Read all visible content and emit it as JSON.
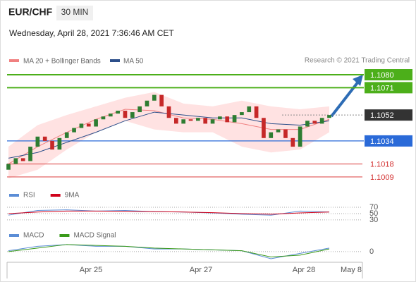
{
  "chart_data": {
    "type": "candlestick",
    "symbol": "EUR/CHF",
    "timeframe": "30 MIN",
    "datetime": "Wednesday, April 28, 2021 7:36:46 AM CET",
    "credit": "Research © 2021 Trading Central",
    "x_labels": [
      "Apr 25",
      "Apr 27",
      "Apr 28",
      "May 8"
    ],
    "ylim": [
      1.1007,
      1.1085
    ],
    "up_color": "#2e7d32",
    "down_color": "#c62828",
    "open": [
      1.1014,
      1.1018,
      1.1022,
      1.102,
      1.103,
      1.1037,
      1.1034,
      1.1028,
      1.1036,
      1.104,
      1.1043,
      1.1046,
      1.1044,
      1.1049,
      1.1051,
      1.1053,
      1.1055,
      1.105,
      1.1054,
      1.1058,
      1.1062,
      1.1066,
      1.1058,
      1.105,
      1.1046,
      1.1049,
      1.1048,
      1.105,
      1.1046,
      1.1049,
      1.1051,
      1.1047,
      1.1052,
      1.1054,
      1.1058,
      1.105,
      1.1036,
      1.104,
      1.1042,
      1.1036,
      1.103,
      1.1044,
      1.1048,
      1.1046,
      1.105
    ],
    "close": [
      1.1018,
      1.1022,
      1.102,
      1.103,
      1.1037,
      1.1034,
      1.1028,
      1.1036,
      1.104,
      1.1043,
      1.1046,
      1.1044,
      1.1049,
      1.1051,
      1.1053,
      1.1055,
      1.105,
      1.1054,
      1.1058,
      1.1062,
      1.1066,
      1.1058,
      1.105,
      1.1046,
      1.1049,
      1.1048,
      1.105,
      1.1046,
      1.1049,
      1.1051,
      1.1047,
      1.1052,
      1.1054,
      1.1058,
      1.105,
      1.1036,
      1.104,
      1.1042,
      1.1036,
      1.103,
      1.1044,
      1.1048,
      1.1046,
      1.105,
      1.1052
    ],
    "bollinger": {
      "name": "MA 20 + Bollinger Bands",
      "color": "#f08080",
      "fill": "#ffd6d6",
      "upper": [
        1.103,
        1.1045,
        1.1052,
        1.1058,
        1.1064,
        1.1068,
        1.106,
        1.1058,
        1.1062,
        1.1058,
        1.1056,
        1.1058
      ],
      "values": [
        1.1018,
        1.103,
        1.104,
        1.1049,
        1.1056,
        1.1055,
        1.105,
        1.1049,
        1.1046,
        1.1042,
        1.1042,
        1.1049
      ],
      "lower": [
        1.1008,
        1.1014,
        1.1028,
        1.104,
        1.1048,
        1.1042,
        1.104,
        1.104,
        1.103,
        1.1026,
        1.1028,
        1.104
      ]
    },
    "ma50": {
      "name": "MA 50",
      "color": "#2c4f8a",
      "values": [
        1.1022,
        1.1026,
        1.1033,
        1.104,
        1.1048,
        1.1054,
        1.1052,
        1.105,
        1.105,
        1.1046,
        1.1045,
        1.1048
      ]
    },
    "levels": [
      {
        "value": 1.108,
        "label": "1.1080",
        "color": "#4caf1a",
        "boxed": true
      },
      {
        "value": 1.1071,
        "label": "1.1071",
        "color": "#4caf1a",
        "boxed": true
      },
      {
        "value": 1.1052,
        "label": "1.1052",
        "color": "#333333",
        "boxed": true,
        "dotted": true
      },
      {
        "value": 1.1034,
        "label": "1.1034",
        "color": "#2a6ad8",
        "boxed": true
      },
      {
        "value": 1.1018,
        "label": "1.1018",
        "color": "#e57373",
        "boxed": false
      },
      {
        "value": 1.1009,
        "label": "1.1009",
        "color": "#e57373",
        "boxed": false
      }
    ],
    "indicators": [
      {
        "ylim": [
          12,
          90
        ],
        "yticks": [
          70,
          50,
          30
        ],
        "series": [
          {
            "name": "RSI",
            "color": "#5b8dd6",
            "values": [
              45,
              60,
              62,
              58,
              60,
              56,
              55,
              52,
              48,
              45,
              58,
              55
            ]
          },
          {
            "name": "9MA",
            "color": "#d0021b",
            "values": [
              50,
              55,
              58,
              58,
              57,
              56,
              55,
              53,
              50,
              48,
              52,
              55
            ]
          }
        ]
      },
      {
        "ylim": [
          -0.0012,
          0.0015
        ],
        "yticks": [
          0
        ],
        "series": [
          {
            "name": "MACD",
            "color": "#5b8dd6",
            "values": [
              0.0001,
              0.0006,
              0.0008,
              0.0006,
              0.0006,
              0.0003,
              0.0003,
              0.0002,
              0.0001,
              -0.0008,
              -0.0002,
              0.0004
            ]
          },
          {
            "name": "MACD Signal",
            "color": "#3a9a1a",
            "values": [
              0,
              0.0004,
              0.0008,
              0.0007,
              0.0006,
              0.0004,
              0.0003,
              0.0002,
              0.0001,
              -0.0006,
              -0.0004,
              0.0003
            ]
          }
        ]
      }
    ]
  }
}
